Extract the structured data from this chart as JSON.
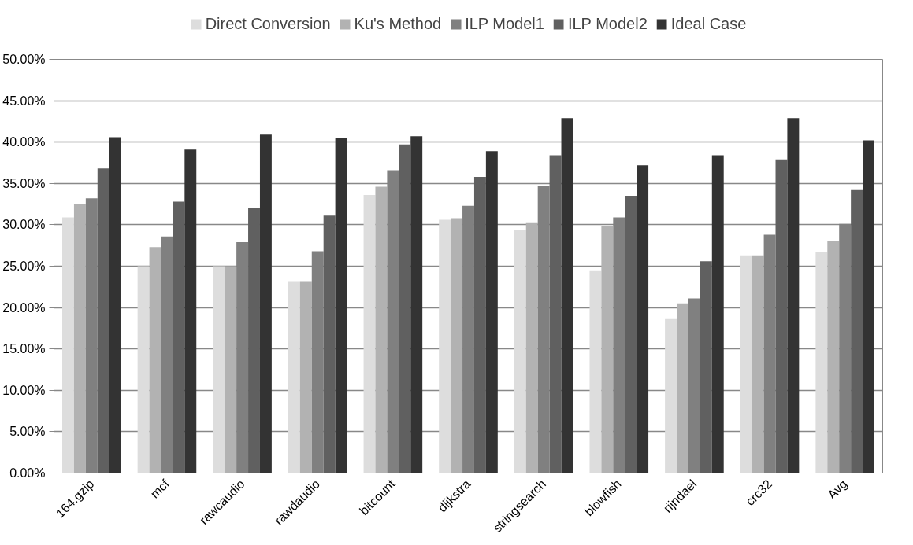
{
  "chart_data": {
    "type": "bar",
    "categories": [
      "164.gzip",
      "mcf",
      "rawcaudio",
      "rawdaudio",
      "bitcount",
      "dijkstra",
      "stringsearch",
      "blowfish",
      "rijndael",
      "crc32",
      "Avg"
    ],
    "series": [
      {
        "name": "Direct Conversion",
        "color": "#dddddd",
        "values": [
          30.9,
          25.0,
          25.0,
          23.2,
          33.6,
          30.6,
          29.4,
          24.5,
          18.7,
          26.3,
          26.7
        ]
      },
      {
        "name": "Ku's Method",
        "color": "#b2b2b2",
        "values": [
          32.5,
          27.3,
          25.0,
          23.2,
          34.6,
          30.8,
          30.3,
          29.9,
          20.5,
          26.3,
          28.1
        ]
      },
      {
        "name": "ILP Model1",
        "color": "#808080",
        "values": [
          33.2,
          28.6,
          27.9,
          26.8,
          36.6,
          32.3,
          34.7,
          30.9,
          21.1,
          28.8,
          30.1
        ]
      },
      {
        "name": "ILP Model2",
        "color": "#606060",
        "values": [
          36.8,
          32.8,
          32.0,
          31.1,
          39.7,
          35.8,
          38.4,
          33.5,
          25.6,
          37.9,
          34.3
        ]
      },
      {
        "name": "Ideal Case",
        "color": "#333333",
        "values": [
          40.6,
          39.1,
          40.9,
          40.5,
          40.7,
          38.9,
          42.9,
          37.2,
          38.4,
          42.9,
          40.2
        ]
      }
    ],
    "ylim": [
      0,
      50
    ],
    "yticks": [
      {
        "value": 0,
        "label": "0.00%"
      },
      {
        "value": 5,
        "label": "5.00%"
      },
      {
        "value": 10,
        "label": "10.00%"
      },
      {
        "value": 15,
        "label": "15.00%"
      },
      {
        "value": 20,
        "label": "20.00%"
      },
      {
        "value": 25,
        "label": "25.00%"
      },
      {
        "value": 30,
        "label": "30.00%"
      },
      {
        "value": 35,
        "label": "35.00%"
      },
      {
        "value": 40,
        "label": "40.00%"
      },
      {
        "value": 45,
        "label": "45.00%"
      },
      {
        "value": 50,
        "label": "50.00%"
      }
    ],
    "grid": "y",
    "legend": "top"
  }
}
